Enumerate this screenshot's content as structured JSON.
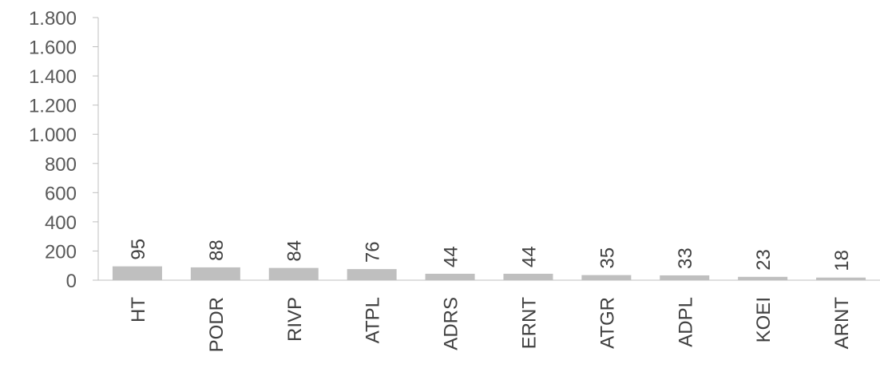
{
  "chart_data": {
    "type": "bar",
    "categories": [
      "HT",
      "PODR",
      "RIVP",
      "ATPL",
      "ADRS",
      "ERNT",
      "ATGR",
      "ADPL",
      "KOEI",
      "ARNT"
    ],
    "values": [
      95,
      88,
      84,
      76,
      44,
      44,
      35,
      33,
      23,
      18
    ],
    "data_labels": [
      "95",
      "88",
      "84",
      "76",
      "44",
      "44",
      "35",
      "33",
      "23",
      "18"
    ],
    "ylim": [
      0,
      1800
    ],
    "y_ticks": [
      0,
      200,
      400,
      600,
      800,
      1000,
      1200,
      1400,
      1600,
      1800
    ],
    "y_tick_labels": [
      "0",
      "200",
      "400",
      "600",
      "800",
      "1.000",
      "1.200",
      "1.400",
      "1.600",
      "1.800"
    ],
    "grid": false,
    "colors": {
      "bar": "#bfbfbf",
      "axis": "#bfbfbf",
      "text": "#404040"
    }
  }
}
